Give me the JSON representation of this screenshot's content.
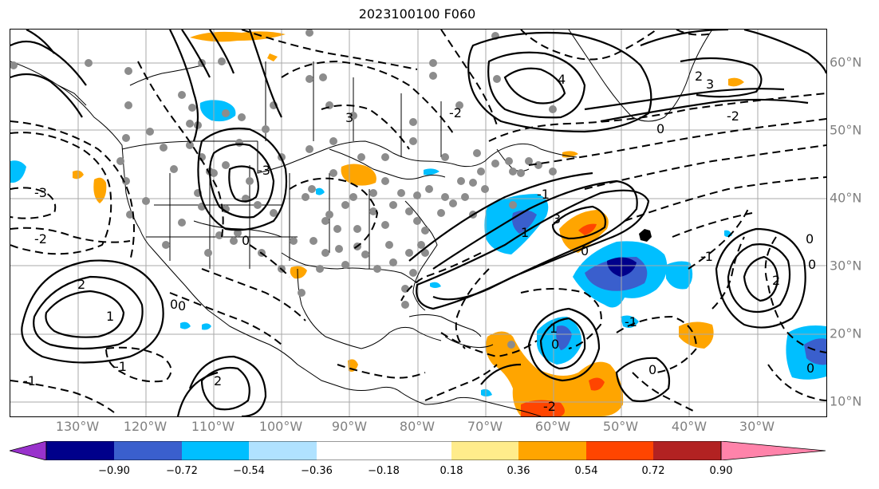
{
  "title": "2023100100 F060",
  "lon_labels": [
    "130°W",
    "120°W",
    "110°W",
    "100°W",
    "90°W",
    "80°W",
    "70°W",
    "60°W",
    "50°W",
    "40°W",
    "30°W"
  ],
  "lat_labels": [
    "60°N",
    "50°N",
    "40°N",
    "30°N",
    "20°N",
    "10°N"
  ],
  "colorbar": {
    "colors": [
      "#9932CC",
      "#00008B",
      "#3A5FCD",
      "#00BFFF",
      "#B0E2FF",
      "#FFFFFF",
      "#FFEC8B",
      "#FFA500",
      "#FF4500",
      "#B22222",
      "#FF83AA"
    ],
    "ticks": [
      "−0.90",
      "−0.72",
      "−0.54",
      "−0.36",
      "−0.18",
      "0.18",
      "0.36",
      "0.54",
      "0.72",
      "0.90"
    ]
  },
  "contour_labels": {
    "c_ne_4": "4",
    "c_gr_2": "2",
    "c_gr_3": "3",
    "c_gr_0": "0",
    "c_gr_n2": "-2",
    "c_ca_3": "3",
    "c_ca_n2": "-2",
    "c_wa_n3": "-3",
    "c_pac_n3": "-3",
    "c_pac_n2": "-2",
    "c_pac_2": "2",
    "c_pac_1": "1",
    "c_pac_0": "0",
    "c_ep_2": "2",
    "c_ep_n1": "-1",
    "c_sw_n1": "-1",
    "c_sw_0": "0",
    "c_at_1": "1",
    "c_at_3": "3",
    "c_at_n1": "-1",
    "c_at_0": "0",
    "c_car_1": "1",
    "c_car_0": "0",
    "c_car_n1": "-1",
    "c_sa_0": "0",
    "c_sa_n2": "-2",
    "c_ea_2": "2",
    "c_ea_n1": "-1",
    "c_ea_0": "0",
    "c_ea2_0": "0",
    "c_ea3_0": "0",
    "c_cal_0": "0"
  }
}
